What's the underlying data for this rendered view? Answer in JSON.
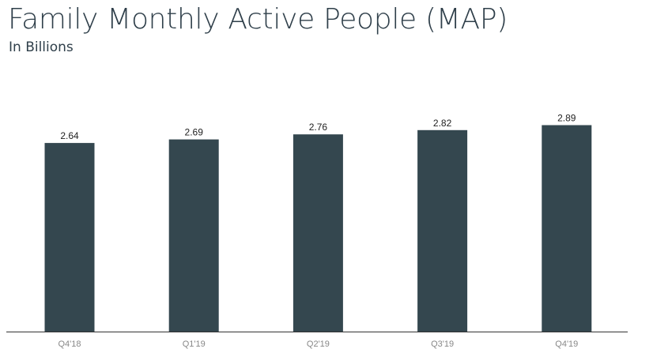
{
  "title": "Family Monthly Active People (MAP)",
  "subtitle": "In Billions",
  "colors": {
    "bar": "#34474f",
    "axis": "#333333",
    "title": "#2f3f4a"
  },
  "chart_data": {
    "type": "bar",
    "title": "Family Monthly Active People (MAP)",
    "subtitle": "In Billions",
    "categories": [
      "Q4'18",
      "Q1'19",
      "Q2'19",
      "Q3'19",
      "Q4'19"
    ],
    "values": [
      2.64,
      2.69,
      2.76,
      2.82,
      2.89
    ],
    "value_labels": [
      "2.64",
      "2.69",
      "2.76",
      "2.82",
      "2.89"
    ],
    "ylim": [
      0,
      3.3
    ],
    "grid": false,
    "legend": "none",
    "xlabel": "",
    "ylabel": ""
  }
}
